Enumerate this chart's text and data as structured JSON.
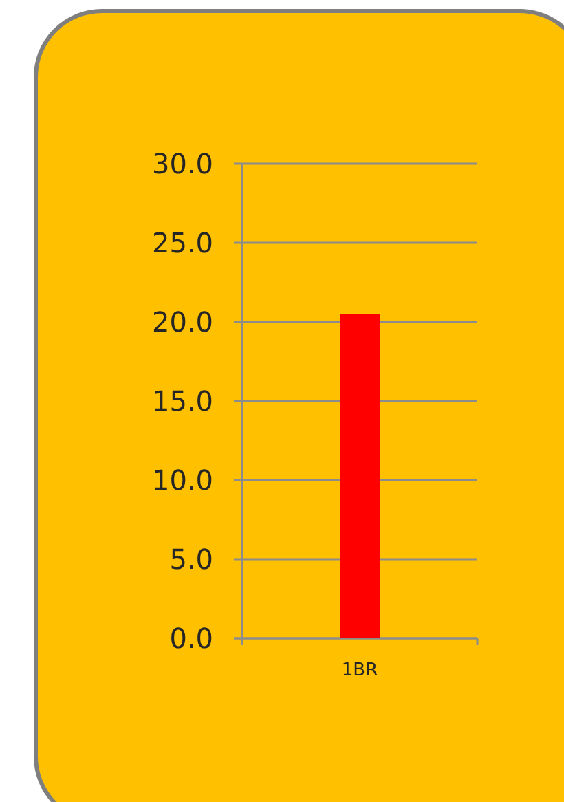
{
  "chart_data": {
    "type": "bar",
    "categories": [
      "1BR"
    ],
    "values": [
      20.5
    ],
    "color": "#ff0000",
    "ylim": [
      0,
      30
    ],
    "yticks": [
      {
        "value": 0,
        "label": "0.0"
      },
      {
        "value": 5,
        "label": "5.0"
      },
      {
        "value": 10,
        "label": "10.0"
      },
      {
        "value": 15,
        "label": "15.0"
      },
      {
        "value": 20,
        "label": "20.0"
      },
      {
        "value": 25,
        "label": "25.0"
      },
      {
        "value": 30,
        "label": "30.0"
      }
    ],
    "grid": "y"
  }
}
